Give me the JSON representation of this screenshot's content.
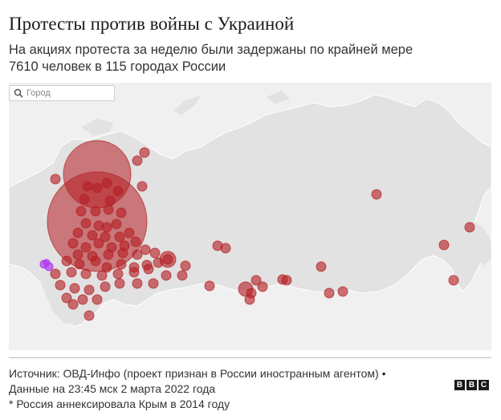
{
  "header": {
    "title": "Протесты против войны с Украиной",
    "subtitle_line1": "На акциях протеста за неделю были задержаны по крайней мере",
    "subtitle_line2": "7610 человек в 115 городах России"
  },
  "search": {
    "placeholder": "Город"
  },
  "footer": {
    "source_line1": "Источник: ОВД-Инфо (проект признан в России иностранным агентом) •",
    "source_line2": "Данные на 23:45 мск 2 марта 2022 года",
    "note": "* Россия аннексировала Крым в 2014 году",
    "logo_letters": [
      "B",
      "B",
      "C"
    ]
  },
  "colors": {
    "land": "#e2e2e2",
    "background": "#f0f0f0",
    "marker": "#b51f24",
    "crimea_marker": "#b13cf0"
  },
  "map": {
    "markers": [
      {
        "group": "moscow-region"
      },
      {
        "group": "st-petersburg-region"
      }
    ]
  }
}
